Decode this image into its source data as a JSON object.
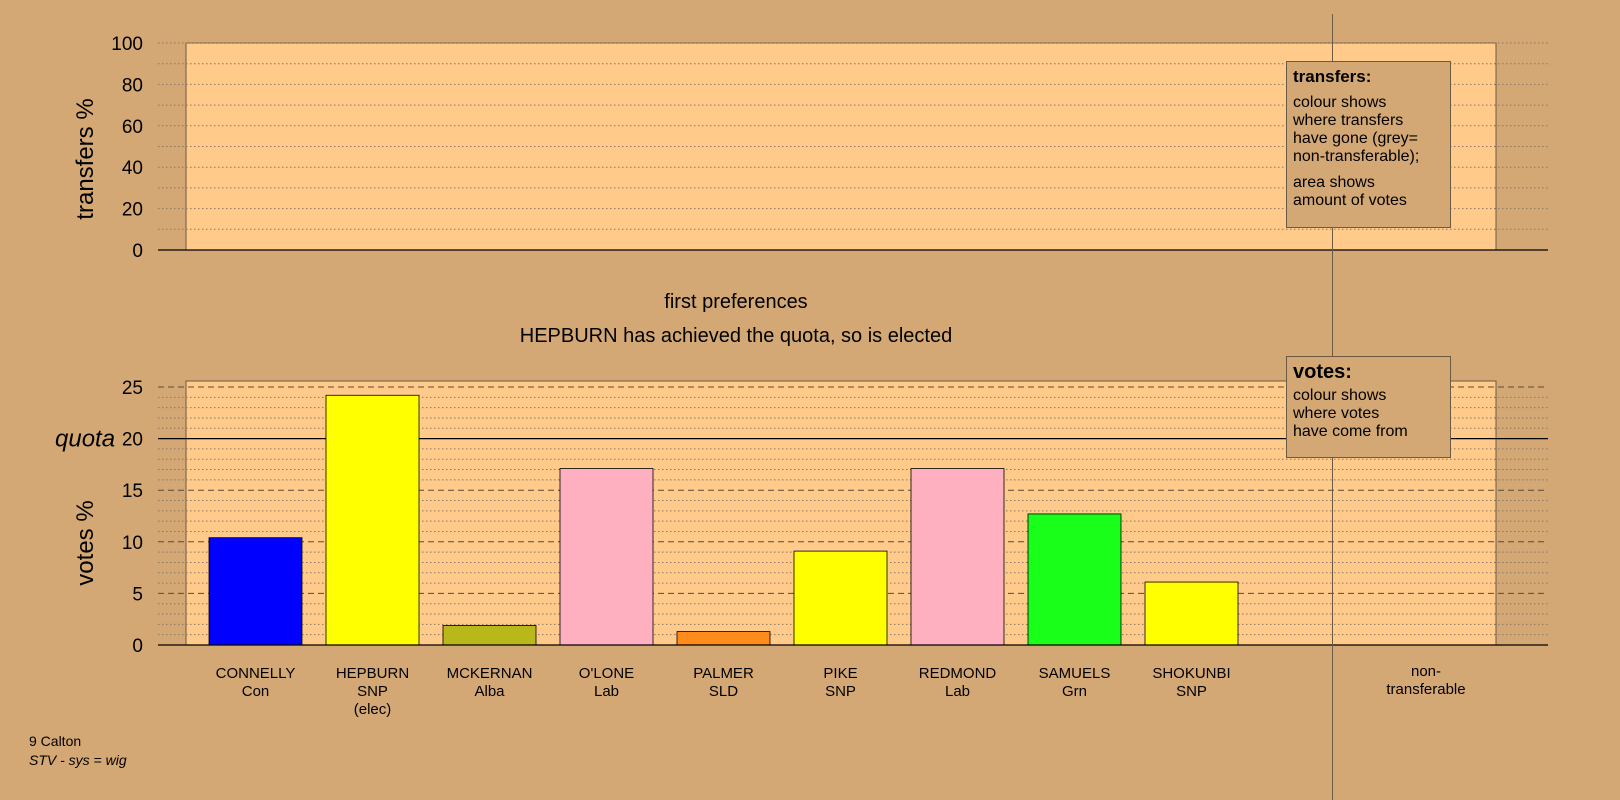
{
  "chart_data": [
    {
      "type": "bar",
      "ylabel": "transfers %",
      "ylim": [
        0,
        100
      ],
      "yticks": [
        0,
        20,
        40,
        60,
        80,
        100
      ],
      "series": []
    },
    {
      "type": "bar",
      "title": "first preferences",
      "subtitle": "HEPBURN has achieved the quota, so is elected",
      "ylabel": "votes %",
      "ylim": [
        0,
        25
      ],
      "yticks": [
        0,
        5,
        10,
        15,
        20,
        25
      ],
      "quota": {
        "label": "quota",
        "value": 20
      },
      "categories": [
        {
          "name": "CONNELLY",
          "party": "Con",
          "note": ""
        },
        {
          "name": "HEPBURN",
          "party": "SNP",
          "note": "(elec)"
        },
        {
          "name": "MCKERNAN",
          "party": "Alba",
          "note": ""
        },
        {
          "name": "O'LONE",
          "party": "Lab",
          "note": ""
        },
        {
          "name": "PALMER",
          "party": "SLD",
          "note": ""
        },
        {
          "name": "PIKE",
          "party": "SNP",
          "note": ""
        },
        {
          "name": "REDMOND",
          "party": "Lab",
          "note": ""
        },
        {
          "name": "SAMUELS",
          "party": "Grn",
          "note": ""
        },
        {
          "name": "SHOKUNBI",
          "party": "SNP",
          "note": ""
        }
      ],
      "values": [
        10.4,
        24.2,
        1.9,
        17.1,
        1.3,
        9.1,
        17.1,
        12.7,
        6.1
      ],
      "colors": [
        "#0000ff",
        "#ffff00",
        "#b8b81a",
        "#ffb0c0",
        "#ff8c1a",
        "#ffff00",
        "#ffb0c0",
        "#1aff1a",
        "#ffff00"
      ],
      "non_transferable_label": [
        "non-",
        "transferable"
      ]
    }
  ],
  "legends": {
    "transfers": {
      "title": "transfers:",
      "line1": "colour shows",
      "line2": "where transfers",
      "line3": "have gone (grey=",
      "line4": "non-transferable);",
      "line5": "area shows",
      "line6": "amount of votes"
    },
    "votes": {
      "title": "votes:",
      "line1": "colour shows",
      "line2": "where votes",
      "line3": "have come from"
    }
  },
  "footer": {
    "ward": "9 Calton",
    "system": "STV - sys = wig"
  },
  "colors": {
    "background": "#d4a874",
    "plot_area": "#ffca8a"
  }
}
